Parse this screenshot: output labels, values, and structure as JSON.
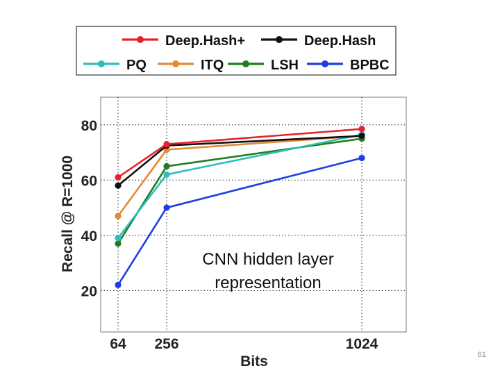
{
  "slide": {
    "page_number": "61"
  },
  "colors": {
    "deephash_plus": "#e8212d",
    "deephash": "#111111",
    "pq": "#30bcbc",
    "itq": "#e38a32",
    "lsh": "#1f7d1f",
    "bpbc": "#1f3ee0"
  },
  "chart_data": {
    "type": "line",
    "title": "",
    "xlabel": "Bits",
    "ylabel": "Recall @ R=1000",
    "x": [
      64,
      256,
      1024
    ],
    "x_tick_labels": [
      "64",
      "256",
      "1024"
    ],
    "y_ticks": [
      20,
      40,
      60,
      80
    ],
    "y_tick_labels": [
      "20",
      "40",
      "60",
      "80"
    ],
    "ylim": [
      5,
      90
    ],
    "grid": true,
    "legend_position": "top",
    "annotation": "CNN hidden layer representation",
    "annotation_lines": [
      "CNN hidden layer",
      "representation"
    ],
    "series": [
      {
        "name": "Deep.Hash+",
        "color": "#e8212d",
        "values": [
          61,
          73,
          78.5
        ]
      },
      {
        "name": "Deep.Hash",
        "color": "#111111",
        "values": [
          58,
          72.5,
          76
        ]
      },
      {
        "name": "PQ",
        "color": "#30bcbc",
        "values": [
          39,
          62,
          76.5
        ]
      },
      {
        "name": "ITQ",
        "color": "#e38a32",
        "values": [
          47,
          71,
          76
        ]
      },
      {
        "name": "LSH",
        "color": "#1f7d1f",
        "values": [
          37,
          65,
          75
        ]
      },
      {
        "name": "BPBC",
        "color": "#1f3ee0",
        "values": [
          22,
          50,
          68
        ]
      }
    ]
  }
}
